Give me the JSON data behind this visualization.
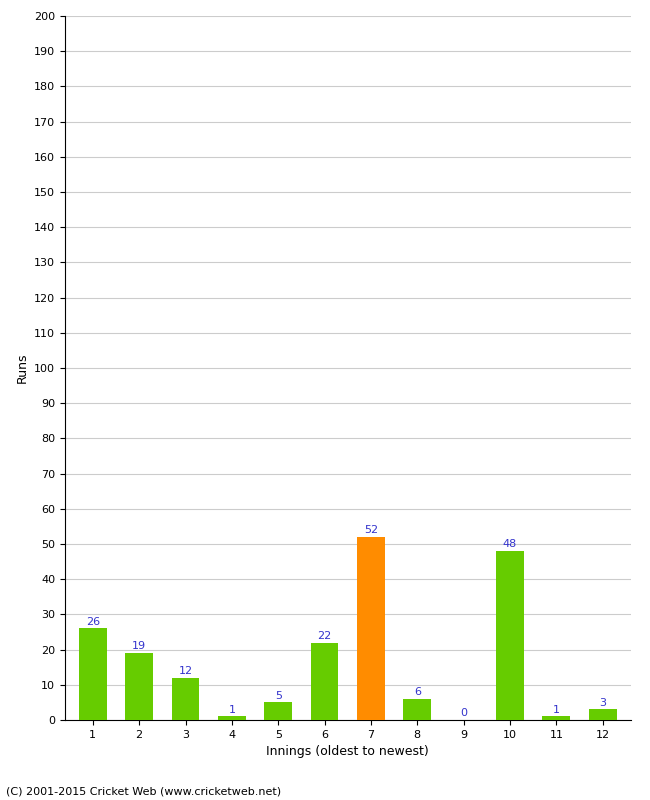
{
  "xlabel": "Innings (oldest to newest)",
  "ylabel": "Runs",
  "categories": [
    1,
    2,
    3,
    4,
    5,
    6,
    7,
    8,
    9,
    10,
    11,
    12
  ],
  "values": [
    26,
    19,
    12,
    1,
    5,
    22,
    52,
    6,
    0,
    48,
    1,
    3
  ],
  "bar_colors": [
    "#66cc00",
    "#66cc00",
    "#66cc00",
    "#66cc00",
    "#66cc00",
    "#66cc00",
    "#ff8c00",
    "#66cc00",
    "#66cc00",
    "#66cc00",
    "#66cc00",
    "#66cc00"
  ],
  "label_color": "#3333cc",
  "ylim": [
    0,
    200
  ],
  "ytick_step": 10,
  "background_color": "#ffffff",
  "grid_color": "#cccccc",
  "footer": "(C) 2001-2015 Cricket Web (www.cricketweb.net)",
  "label_fontsize": 8,
  "axis_label_fontsize": 9,
  "tick_fontsize": 8,
  "footer_fontsize": 8
}
